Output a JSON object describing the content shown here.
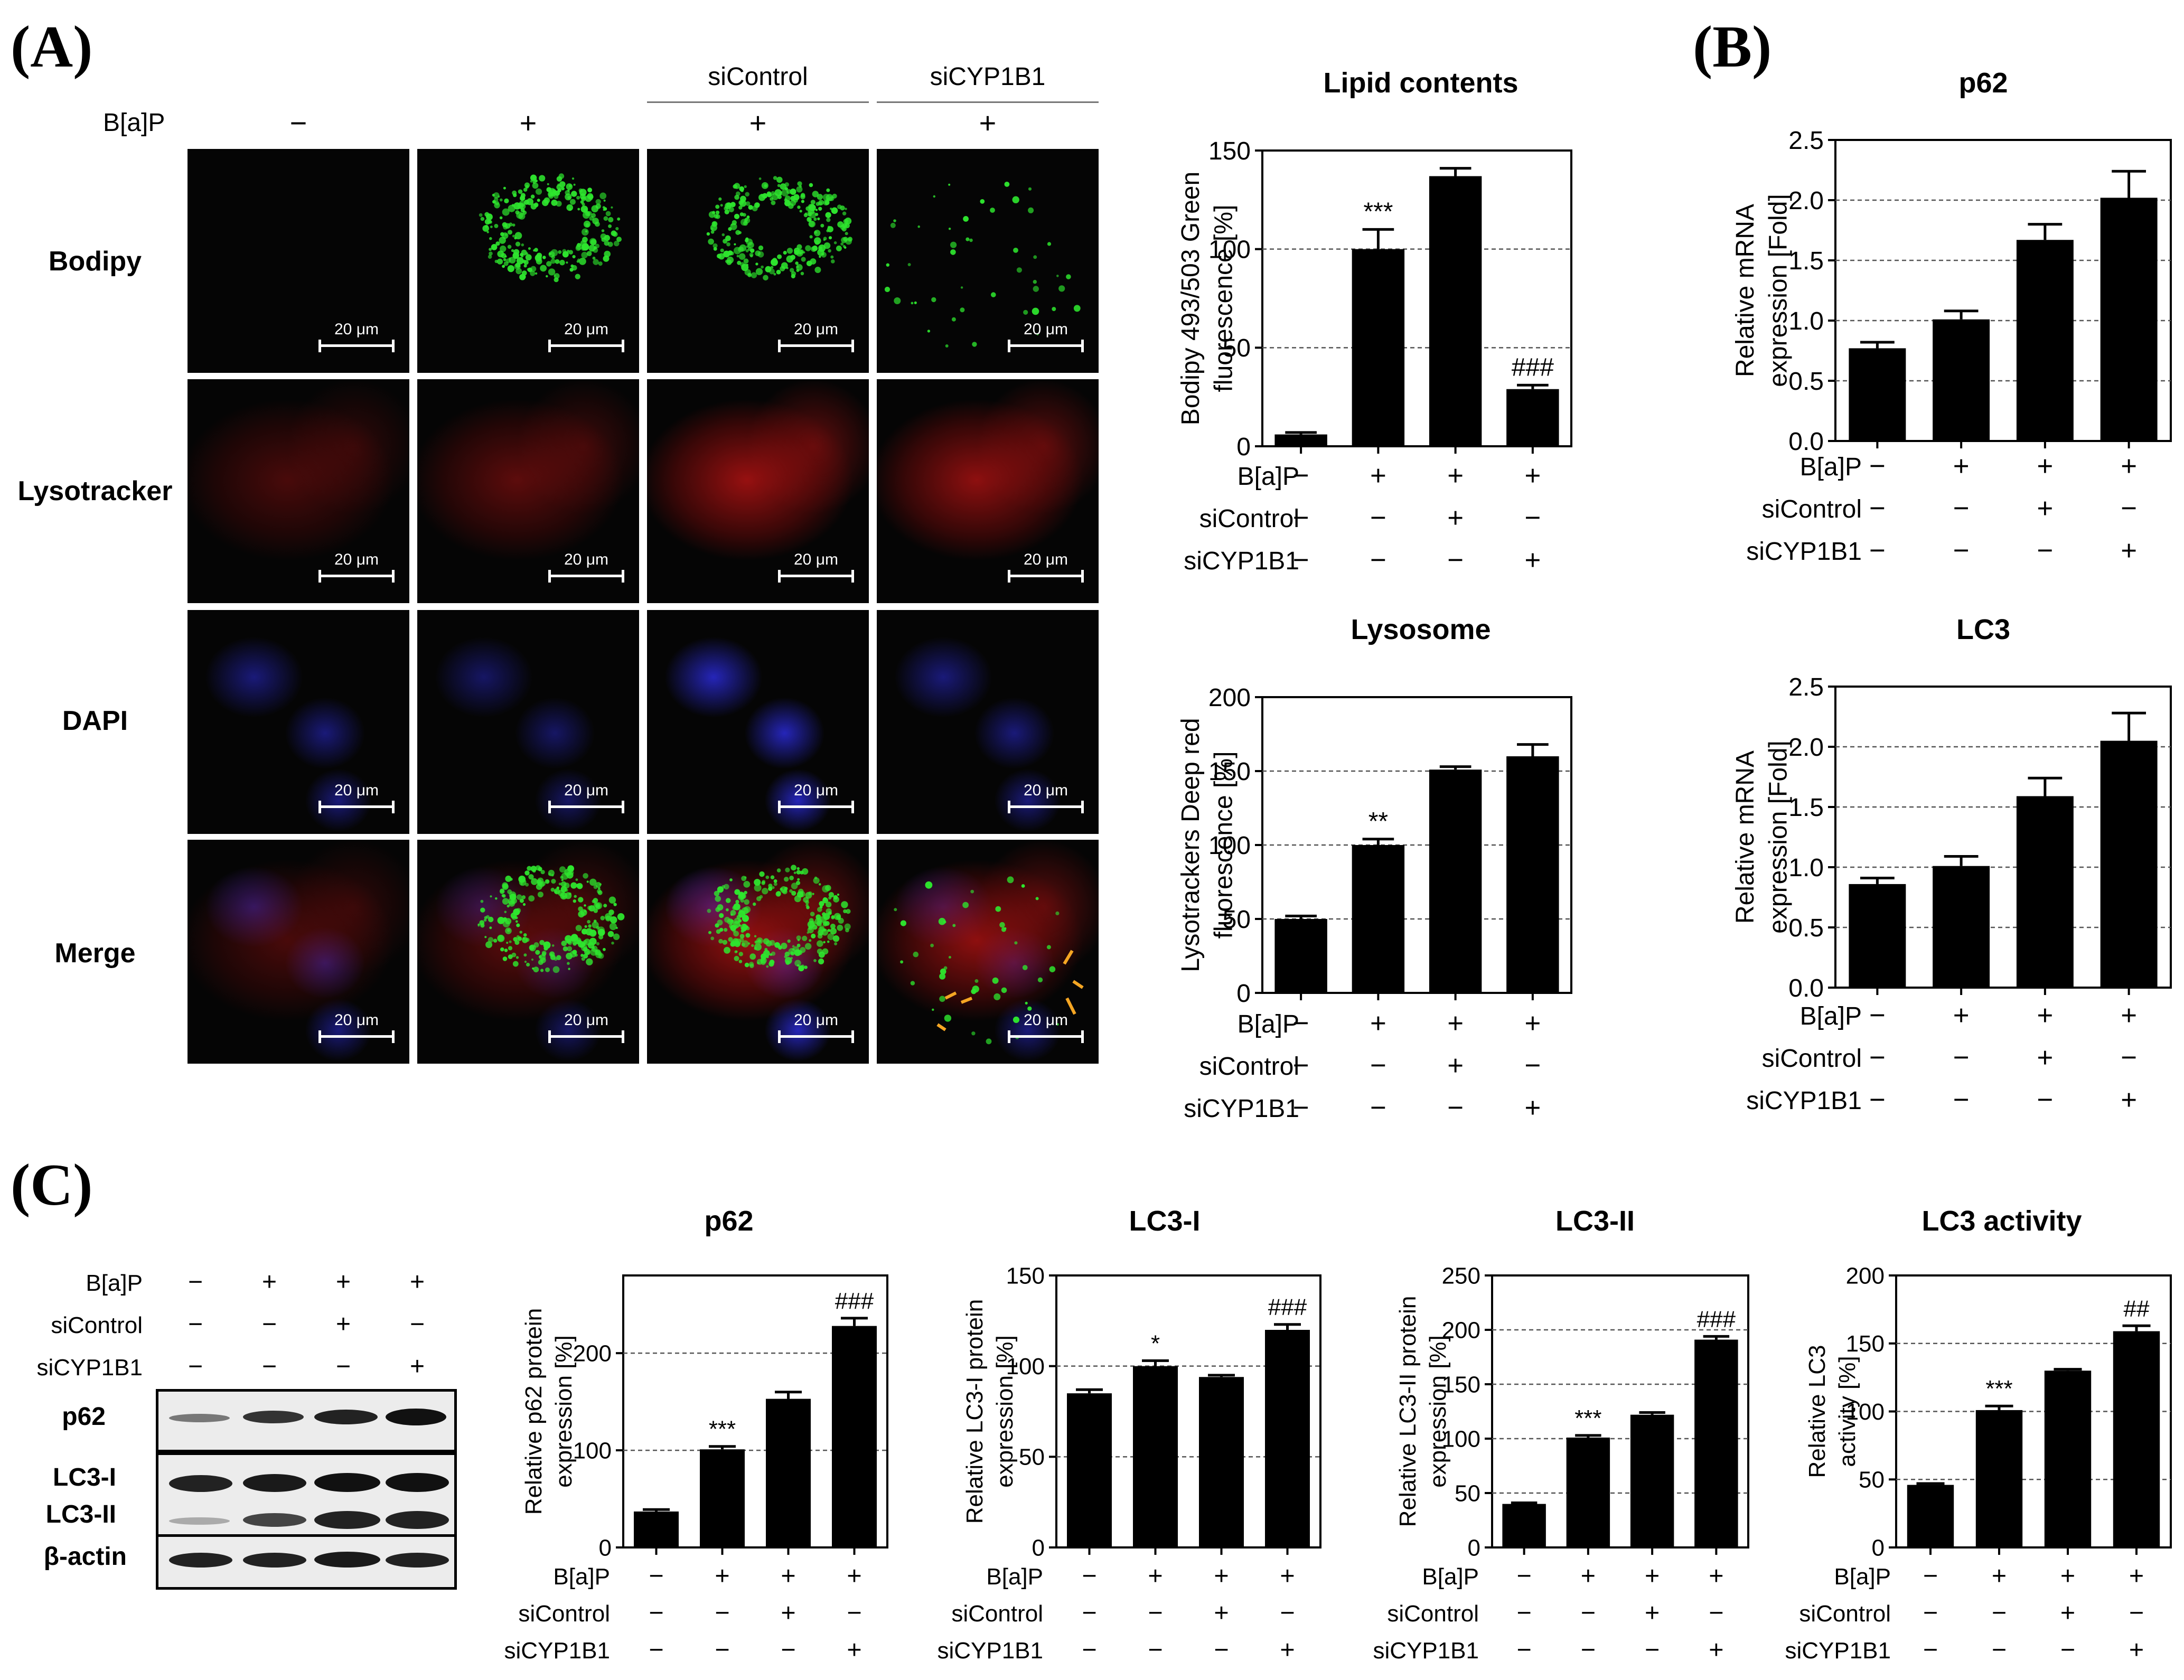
{
  "panels": {
    "A": "(A)",
    "B": "(B)",
    "C": "(C)"
  },
  "microscopy": {
    "treatment_label": "B[a]P",
    "groups": [
      "siControl",
      "siCYP1B1"
    ],
    "columns": [
      "−",
      "+",
      "+",
      "+"
    ],
    "rows": [
      "Bodipy",
      "Lysotracker",
      "DAPI",
      "Merge"
    ],
    "scale_bar": "20 μm"
  },
  "blot": {
    "conditions": [
      {
        "label": "B[a]P",
        "signs": [
          "−",
          "+",
          "+",
          "+"
        ]
      },
      {
        "label": "siControl",
        "signs": [
          "−",
          "−",
          "+",
          "−"
        ]
      },
      {
        "label": "siCYP1B1",
        "signs": [
          "−",
          "−",
          "−",
          "+"
        ]
      }
    ],
    "bands": [
      "p62",
      "LC3-I",
      "LC3-II",
      "β-actin"
    ]
  },
  "colors": {
    "bar": "#000000",
    "bodipy": "#2ee62e",
    "lysotracker": "#c81414",
    "dapi": "#2b2bd8",
    "arrow": "#f5a623"
  },
  "chart_data": [
    {
      "id": "lipid",
      "type": "bar",
      "title": "Lipid contents",
      "ylabel": "Bodipy 493/503 Green fluorescence [%]",
      "ylim": [
        0,
        150
      ],
      "yticks": [
        0,
        50,
        100,
        150
      ],
      "grid": true,
      "values": [
        6,
        100,
        137,
        29
      ],
      "errors": [
        1,
        10,
        4,
        2
      ],
      "annotations": [
        "",
        "***",
        "",
        "###"
      ],
      "conditions": [
        {
          "label": "B[a]P",
          "signs": [
            "−",
            "+",
            "+",
            "+"
          ]
        },
        {
          "label": "siControl",
          "signs": [
            "−",
            "−",
            "+",
            "−"
          ]
        },
        {
          "label": "siCYP1B1",
          "signs": [
            "−",
            "−",
            "−",
            "+"
          ]
        }
      ]
    },
    {
      "id": "lysosome",
      "type": "bar",
      "title": "Lysosome",
      "ylabel": "Lysotrackers Deep red fluorescence [%]",
      "ylim": [
        0,
        200
      ],
      "yticks": [
        0,
        50,
        100,
        150,
        200
      ],
      "grid": true,
      "values": [
        50,
        100,
        151,
        160
      ],
      "errors": [
        2,
        4,
        2,
        8
      ],
      "annotations": [
        "",
        "**",
        "",
        ""
      ],
      "conditions": [
        {
          "label": "B[a]P",
          "signs": [
            "−",
            "+",
            "+",
            "+"
          ]
        },
        {
          "label": "siControl",
          "signs": [
            "−",
            "−",
            "+",
            "−"
          ]
        },
        {
          "label": "siCYP1B1",
          "signs": [
            "−",
            "−",
            "−",
            "+"
          ]
        }
      ]
    },
    {
      "id": "p62_mrna",
      "type": "bar",
      "title": "p62",
      "ylabel": "Relative mRNA expression [Fold]",
      "ylim": [
        0,
        2.5
      ],
      "yticks": [
        "0.0",
        "0.5",
        "1.0",
        "1.5",
        "2.0",
        "2.5"
      ],
      "grid": true,
      "values": [
        0.77,
        1.01,
        1.67,
        2.02
      ],
      "errors": [
        0.05,
        0.07,
        0.13,
        0.22
      ],
      "annotations": [
        "",
        "",
        "",
        ""
      ],
      "conditions": [
        {
          "label": "B[a]P",
          "signs": [
            "−",
            "+",
            "+",
            "+"
          ]
        },
        {
          "label": "siControl",
          "signs": [
            "−",
            "−",
            "+",
            "−"
          ]
        },
        {
          "label": "siCYP1B1",
          "signs": [
            "−",
            "−",
            "−",
            "+"
          ]
        }
      ]
    },
    {
      "id": "lc3_mrna",
      "type": "bar",
      "title": "LC3",
      "ylabel": "Relative mRNA expression [Fold]",
      "ylim": [
        0,
        2.5
      ],
      "yticks": [
        "0.0",
        "0.5",
        "1.0",
        "1.5",
        "2.0",
        "2.5"
      ],
      "grid": true,
      "values": [
        0.86,
        1.01,
        1.59,
        2.05
      ],
      "errors": [
        0.05,
        0.08,
        0.15,
        0.23
      ],
      "annotations": [
        "",
        "",
        "",
        ""
      ],
      "conditions": [
        {
          "label": "B[a]P",
          "signs": [
            "−",
            "+",
            "+",
            "+"
          ]
        },
        {
          "label": "siControl",
          "signs": [
            "−",
            "−",
            "+",
            "−"
          ]
        },
        {
          "label": "siCYP1B1",
          "signs": [
            "−",
            "−",
            "−",
            "+"
          ]
        }
      ]
    },
    {
      "id": "p62_protein",
      "type": "bar",
      "title": "p62",
      "ylabel": "Relative p62 protein expression [%]",
      "ylim": [
        0,
        280
      ],
      "yticks": [
        0,
        100,
        200
      ],
      "grid": true,
      "values": [
        37,
        101,
        153,
        228
      ],
      "errors": [
        2,
        3,
        7,
        8
      ],
      "annotations": [
        "",
        "***",
        "",
        "###"
      ],
      "conditions": [
        {
          "label": "B[a]P",
          "signs": [
            "−",
            "+",
            "+",
            "+"
          ]
        },
        {
          "label": "siControl",
          "signs": [
            "−",
            "−",
            "+",
            "−"
          ]
        },
        {
          "label": "siCYP1B1",
          "signs": [
            "−",
            "−",
            "−",
            "+"
          ]
        }
      ]
    },
    {
      "id": "lc3i",
      "type": "bar",
      "title": "LC3-I",
      "ylabel": "Relative LC3-I protein expression [%]",
      "ylim": [
        0,
        150
      ],
      "yticks": [
        0,
        50,
        100,
        150
      ],
      "grid": true,
      "values": [
        85,
        100,
        94,
        120
      ],
      "errors": [
        2,
        3,
        1,
        3
      ],
      "annotations": [
        "",
        "*",
        "",
        "###"
      ],
      "conditions": [
        {
          "label": "B[a]P",
          "signs": [
            "−",
            "+",
            "+",
            "+"
          ]
        },
        {
          "label": "siControl",
          "signs": [
            "−",
            "−",
            "+",
            "−"
          ]
        },
        {
          "label": "siCYP1B1",
          "signs": [
            "−",
            "−",
            "−",
            "+"
          ]
        }
      ]
    },
    {
      "id": "lc3ii",
      "type": "bar",
      "title": "LC3-II",
      "ylabel": "Relative LC3-II protein expression [%]",
      "ylim": [
        0,
        250
      ],
      "yticks": [
        0,
        50,
        100,
        150,
        200,
        250
      ],
      "grid": true,
      "values": [
        40,
        101,
        122,
        191
      ],
      "errors": [
        1,
        2,
        2,
        3
      ],
      "annotations": [
        "",
        "***",
        "",
        "###"
      ],
      "conditions": [
        {
          "label": "B[a]P",
          "signs": [
            "−",
            "+",
            "+",
            "+"
          ]
        },
        {
          "label": "siControl",
          "signs": [
            "−",
            "−",
            "+",
            "−"
          ]
        },
        {
          "label": "siCYP1B1",
          "signs": [
            "−",
            "−",
            "−",
            "+"
          ]
        }
      ]
    },
    {
      "id": "lc3_activity",
      "type": "bar",
      "title": "LC3 activity",
      "ylabel": "Relative LC3 activity [%]",
      "ylim": [
        0,
        200
      ],
      "yticks": [
        0,
        50,
        100,
        150,
        200
      ],
      "grid": true,
      "values": [
        46,
        101,
        130,
        159
      ],
      "errors": [
        1,
        3,
        1,
        4
      ],
      "annotations": [
        "",
        "***",
        "",
        "##"
      ],
      "conditions": [
        {
          "label": "B[a]P",
          "signs": [
            "−",
            "+",
            "+",
            "+"
          ]
        },
        {
          "label": "siControl",
          "signs": [
            "−",
            "−",
            "+",
            "−"
          ]
        },
        {
          "label": "siCYP1B1",
          "signs": [
            "−",
            "−",
            "−",
            "+"
          ]
        }
      ]
    }
  ]
}
